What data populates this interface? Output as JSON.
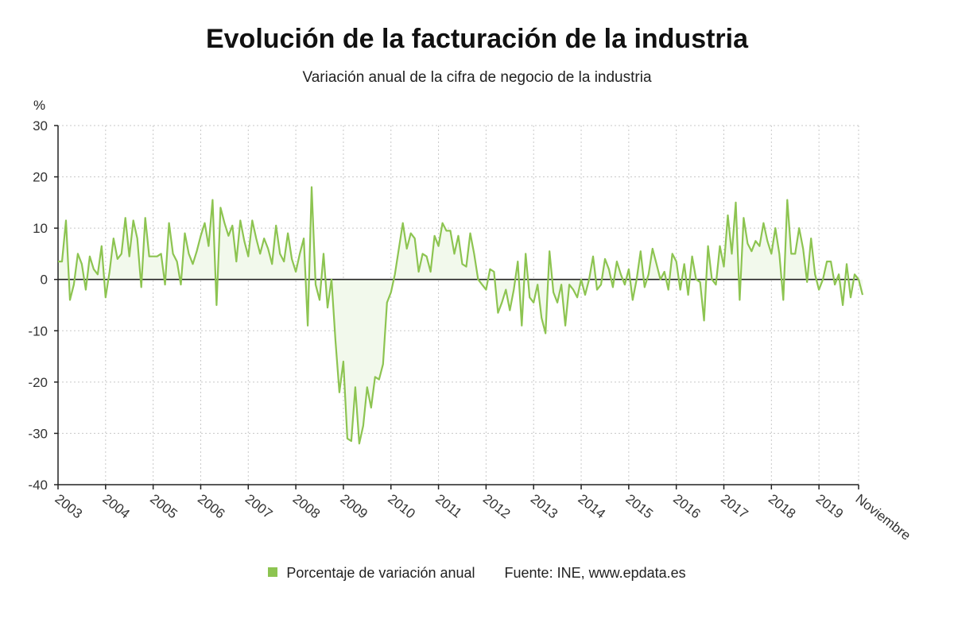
{
  "colors": {
    "series": "#8dc451",
    "axis": "#222222",
    "grid": "#c8c8c8",
    "fill": "#f2f9ec"
  },
  "legend": {
    "series_label": "Porcentaje de variación anual",
    "source": "Fuente: INE, www.epdata.es"
  },
  "chart_data": {
    "type": "line",
    "title": "Evolución de la facturación de la industria",
    "subtitle": "Variación anual de la cifra de negocio de la industria",
    "ylabel": "%",
    "ylim": [
      -40,
      30
    ],
    "yticks": [
      30,
      20,
      10,
      0,
      -10,
      -20,
      -30,
      -40
    ],
    "x_tick_labels": [
      "2003",
      "2004",
      "2005",
      "2006",
      "2007",
      "2008",
      "2009",
      "2010",
      "2011",
      "2012",
      "2013",
      "2014",
      "2015",
      "2016",
      "2017",
      "2018",
      "2019",
      "Noviembre"
    ],
    "grid": true,
    "legend_position": "bottom",
    "x_start": "2003-01",
    "x_end": "2019-11",
    "series": [
      {
        "name": "Porcentaje de variación anual",
        "values": [
          3.5,
          3.5,
          11.5,
          -4,
          -1,
          5,
          3,
          -2,
          4.5,
          2,
          1,
          6.5,
          -3.5,
          1.5,
          8,
          4,
          5,
          12,
          4.5,
          11.5,
          8,
          -1.5,
          12,
          4.5,
          4.5,
          4.5,
          5,
          -1,
          11,
          5,
          3.5,
          -1,
          9,
          5,
          3,
          5.5,
          8.5,
          11,
          6.5,
          15.5,
          -5,
          14,
          11,
          8.5,
          10.5,
          3.5,
          11.5,
          7.5,
          4.5,
          11.5,
          8,
          5,
          8,
          6,
          3,
          10.5,
          5,
          3.5,
          9,
          4,
          1.5,
          5,
          8,
          -9,
          18,
          -1,
          -4,
          5,
          -5.5,
          0,
          -12,
          -22,
          -16,
          -31,
          -31.5,
          -21,
          -32,
          -28.5,
          -21,
          -25,
          -19,
          -19.5,
          -16.5,
          -4.5,
          -2.5,
          1,
          6,
          11,
          6,
          9,
          8,
          1.5,
          5,
          4.5,
          1.5,
          8.5,
          6.5,
          11,
          9.5,
          9.5,
          5,
          8.5,
          3,
          2.5,
          9,
          5,
          0,
          -1,
          -2,
          2,
          1.5,
          -6.5,
          -4.5,
          -2,
          -6,
          -2,
          3.5,
          -9,
          5,
          -3.5,
          -4.5,
          -1,
          -7.5,
          -10.5,
          5.5,
          -2.5,
          -4.5,
          -1,
          -9,
          -1,
          -2,
          -3.5,
          0,
          -3,
          0,
          4.5,
          -2,
          -1,
          4,
          2,
          -1.5,
          3.5,
          1,
          -1,
          2,
          -4,
          0,
          5.5,
          -1.5,
          1,
          6,
          3,
          0,
          1.5,
          -2,
          5,
          3.5,
          -2,
          3,
          -3,
          4.5,
          0,
          -0.5,
          -8,
          6.5,
          0,
          -1,
          6.5,
          2.5,
          12.5,
          5,
          15,
          -4,
          12,
          7,
          5.5,
          7.5,
          6.5,
          11,
          7.5,
          5,
          10,
          5,
          -4,
          15.5,
          5,
          5,
          10,
          6,
          -0.5,
          8,
          1,
          -2,
          0,
          3.5,
          3.5,
          -1,
          1,
          -5,
          3,
          -3.5,
          1,
          0,
          -3
        ]
      }
    ]
  }
}
